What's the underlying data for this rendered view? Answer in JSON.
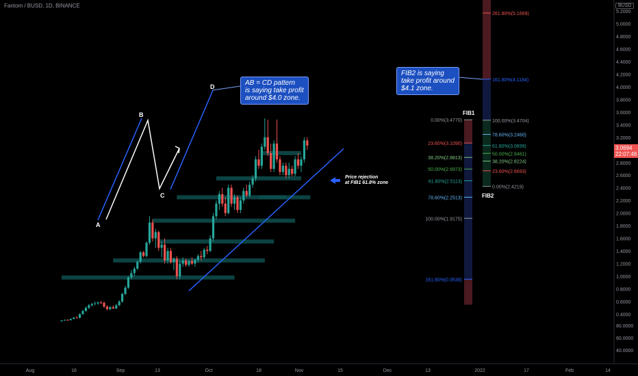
{
  "header": {
    "title": "Fantom / BUSD, 1D, BINANCE",
    "currency_badge": "BUSD"
  },
  "current_price": {
    "value": "3.0694",
    "countdown": "22:07:48",
    "color": "#ef5350"
  },
  "colors": {
    "up": "#26a69a",
    "down": "#ef5350",
    "trend": "#2962ff",
    "zone": "#0e4d4d",
    "note": "#1c4fc0"
  },
  "notes": {
    "abcd": "AB = CD pattern\nis saying take profit\naround $4.0 zone.",
    "fib2": "FIB2 is saying\ntake profit around\n$4.1 zone.",
    "rejection": "Price rejection\nat FIB1 61.8% zone"
  },
  "pattern_points": [
    "A",
    "B",
    "C",
    "D"
  ],
  "fib1": {
    "title": "FIB1",
    "levels": [
      {
        "label": "0.00%(3.4770)",
        "price": 3.477,
        "color": "#9598a1"
      },
      {
        "label": "23.60%(3.1090)",
        "price": 3.109,
        "color": "#ef5350"
      },
      {
        "label": "38.20%(2.8813)",
        "price": 2.8813,
        "color": "#81c784"
      },
      {
        "label": "50.00%(2.6973)",
        "price": 2.6973,
        "color": "#4caf50"
      },
      {
        "label": "61.80%(2.5113)",
        "price": 2.5113,
        "color": "#26a69a"
      },
      {
        "label": "78.60%(2.2513)",
        "price": 2.2513,
        "color": "#64b5f6"
      },
      {
        "label": "100.00%(1.9175)",
        "price": 1.9175,
        "color": "#9598a1"
      },
      {
        "label": "161.80%(0.9538)",
        "price": 0.9538,
        "color": "#2962ff"
      }
    ]
  },
  "fib2": {
    "title": "FIB2",
    "levels": [
      {
        "label": "261.80%(5.1669)",
        "price": 5.1669,
        "color": "#ef5350"
      },
      {
        "label": "161.80%(4.1184)",
        "price": 4.1184,
        "color": "#2962ff"
      },
      {
        "label": "100.00%(3.4704)",
        "price": 3.4704,
        "color": "#9598a1"
      },
      {
        "label": "78.60%(3.2460)",
        "price": 3.246,
        "color": "#64b5f6"
      },
      {
        "label": "61.80%(3.0699)",
        "price": 3.0699,
        "color": "#26a69a"
      },
      {
        "label": "50.00%(2.9461)",
        "price": 2.9461,
        "color": "#4caf50"
      },
      {
        "label": "38.20%(2.8224)",
        "price": 2.8224,
        "color": "#81c784"
      },
      {
        "label": "23.60%(2.6693)",
        "price": 2.6693,
        "color": "#ef5350"
      },
      {
        "label": "0.00%(2.4219)",
        "price": 2.4219,
        "color": "#9598a1"
      }
    ]
  },
  "chart_data": {
    "type": "candlestick",
    "title": "Fantom / BUSD, 1D, BINANCE",
    "x_ticks": [
      "Aug",
      "16",
      "Sep",
      "13",
      "Oct",
      "18",
      "Nov",
      "15",
      "Dec",
      "13",
      "2022",
      "17",
      "Feb",
      "14"
    ],
    "y_ticks": [
      "5.2000",
      "5.0000",
      "4.8000",
      "4.6000",
      "4.4000",
      "4.2000",
      "4.0000",
      "3.8000",
      "3.6000",
      "3.4000",
      "3.2000",
      "3.0000",
      "2.8000",
      "2.6000",
      "2.4000",
      "2.2000",
      "2.0000",
      "1.8000",
      "1.6000",
      "1.4000",
      "1.2000",
      "1.0000",
      "0.8000",
      "0.6000",
      "0.4000",
      "80.0000",
      "60.0000",
      "40.0000"
    ],
    "ylim": [
      0.2,
      5.4
    ],
    "candles": [
      {
        "o": 0.29,
        "h": 0.305,
        "l": 0.28,
        "c": 0.3
      },
      {
        "o": 0.3,
        "h": 0.315,
        "l": 0.295,
        "c": 0.31
      },
      {
        "o": 0.31,
        "h": 0.32,
        "l": 0.3,
        "c": 0.305
      },
      {
        "o": 0.305,
        "h": 0.33,
        "l": 0.3,
        "c": 0.325
      },
      {
        "o": 0.325,
        "h": 0.35,
        "l": 0.32,
        "c": 0.345
      },
      {
        "o": 0.345,
        "h": 0.37,
        "l": 0.34,
        "c": 0.34
      },
      {
        "o": 0.34,
        "h": 0.41,
        "l": 0.335,
        "c": 0.4
      },
      {
        "o": 0.4,
        "h": 0.47,
        "l": 0.39,
        "c": 0.45
      },
      {
        "o": 0.45,
        "h": 0.52,
        "l": 0.44,
        "c": 0.5
      },
      {
        "o": 0.5,
        "h": 0.56,
        "l": 0.48,
        "c": 0.54
      },
      {
        "o": 0.54,
        "h": 0.58,
        "l": 0.52,
        "c": 0.56
      },
      {
        "o": 0.56,
        "h": 0.6,
        "l": 0.54,
        "c": 0.57
      },
      {
        "o": 0.57,
        "h": 0.6,
        "l": 0.55,
        "c": 0.585
      },
      {
        "o": 0.585,
        "h": 0.61,
        "l": 0.56,
        "c": 0.58
      },
      {
        "o": 0.58,
        "h": 0.6,
        "l": 0.5,
        "c": 0.52
      },
      {
        "o": 0.52,
        "h": 0.54,
        "l": 0.46,
        "c": 0.48
      },
      {
        "o": 0.48,
        "h": 0.53,
        "l": 0.46,
        "c": 0.51
      },
      {
        "o": 0.51,
        "h": 0.54,
        "l": 0.48,
        "c": 0.49
      },
      {
        "o": 0.49,
        "h": 0.56,
        "l": 0.48,
        "c": 0.54
      },
      {
        "o": 0.54,
        "h": 0.62,
        "l": 0.53,
        "c": 0.6
      },
      {
        "o": 0.6,
        "h": 0.74,
        "l": 0.58,
        "c": 0.72
      },
      {
        "o": 0.72,
        "h": 0.85,
        "l": 0.7,
        "c": 0.82
      },
      {
        "o": 0.82,
        "h": 1.0,
        "l": 0.8,
        "c": 0.98
      },
      {
        "o": 0.98,
        "h": 1.1,
        "l": 0.95,
        "c": 1.05
      },
      {
        "o": 1.05,
        "h": 1.15,
        "l": 1.0,
        "c": 1.12
      },
      {
        "o": 1.12,
        "h": 1.25,
        "l": 1.1,
        "c": 1.23
      },
      {
        "o": 1.23,
        "h": 1.4,
        "l": 1.2,
        "c": 1.38
      },
      {
        "o": 1.38,
        "h": 1.4,
        "l": 1.3,
        "c": 1.32
      },
      {
        "o": 1.32,
        "h": 1.55,
        "l": 1.3,
        "c": 1.53
      },
      {
        "o": 1.53,
        "h": 1.95,
        "l": 1.5,
        "c": 1.85
      },
      {
        "o": 1.85,
        "h": 1.9,
        "l": 1.55,
        "c": 1.6
      },
      {
        "o": 1.6,
        "h": 1.75,
        "l": 1.45,
        "c": 1.7
      },
      {
        "o": 1.7,
        "h": 1.72,
        "l": 1.4,
        "c": 1.45
      },
      {
        "o": 1.45,
        "h": 1.55,
        "l": 1.3,
        "c": 1.5
      },
      {
        "o": 1.5,
        "h": 1.6,
        "l": 1.2,
        "c": 1.25
      },
      {
        "o": 1.25,
        "h": 1.45,
        "l": 1.2,
        "c": 1.4
      },
      {
        "o": 1.4,
        "h": 1.45,
        "l": 1.2,
        "c": 1.22
      },
      {
        "o": 1.22,
        "h": 1.3,
        "l": 1.1,
        "c": 1.28
      },
      {
        "o": 1.28,
        "h": 1.32,
        "l": 0.95,
        "c": 1.0
      },
      {
        "o": 1.0,
        "h": 1.25,
        "l": 0.95,
        "c": 1.2
      },
      {
        "o": 1.2,
        "h": 1.3,
        "l": 1.15,
        "c": 1.25
      },
      {
        "o": 1.25,
        "h": 1.28,
        "l": 1.15,
        "c": 1.18
      },
      {
        "o": 1.18,
        "h": 1.26,
        "l": 1.15,
        "c": 1.24
      },
      {
        "o": 1.24,
        "h": 1.3,
        "l": 1.18,
        "c": 1.2
      },
      {
        "o": 1.2,
        "h": 1.28,
        "l": 1.15,
        "c": 1.26
      },
      {
        "o": 1.26,
        "h": 1.35,
        "l": 1.22,
        "c": 1.32
      },
      {
        "o": 1.32,
        "h": 1.4,
        "l": 1.25,
        "c": 1.3
      },
      {
        "o": 1.3,
        "h": 1.45,
        "l": 1.28,
        "c": 1.42
      },
      {
        "o": 1.42,
        "h": 1.48,
        "l": 1.35,
        "c": 1.4
      },
      {
        "o": 1.4,
        "h": 1.65,
        "l": 1.38,
        "c": 1.6
      },
      {
        "o": 1.6,
        "h": 2.0,
        "l": 1.55,
        "c": 1.95
      },
      {
        "o": 1.95,
        "h": 2.2,
        "l": 1.9,
        "c": 2.15
      },
      {
        "o": 2.15,
        "h": 2.35,
        "l": 2.05,
        "c": 2.3
      },
      {
        "o": 2.3,
        "h": 2.4,
        "l": 2.1,
        "c": 2.15
      },
      {
        "o": 2.15,
        "h": 2.25,
        "l": 1.95,
        "c": 2.0
      },
      {
        "o": 2.0,
        "h": 2.45,
        "l": 1.98,
        "c": 2.4
      },
      {
        "o": 2.4,
        "h": 2.45,
        "l": 2.1,
        "c": 2.15
      },
      {
        "o": 2.15,
        "h": 2.3,
        "l": 2.05,
        "c": 2.25
      },
      {
        "o": 2.25,
        "h": 2.28,
        "l": 2.0,
        "c": 2.05
      },
      {
        "o": 2.05,
        "h": 2.25,
        "l": 2.0,
        "c": 2.2
      },
      {
        "o": 2.2,
        "h": 2.4,
        "l": 2.15,
        "c": 2.35
      },
      {
        "o": 2.35,
        "h": 2.45,
        "l": 2.25,
        "c": 2.28
      },
      {
        "o": 2.28,
        "h": 2.5,
        "l": 2.25,
        "c": 2.45
      },
      {
        "o": 2.45,
        "h": 2.6,
        "l": 2.4,
        "c": 2.55
      },
      {
        "o": 2.55,
        "h": 2.9,
        "l": 2.5,
        "c": 2.85
      },
      {
        "o": 2.85,
        "h": 3.0,
        "l": 2.7,
        "c": 2.75
      },
      {
        "o": 2.75,
        "h": 3.1,
        "l": 2.7,
        "c": 3.05
      },
      {
        "o": 3.05,
        "h": 3.5,
        "l": 3.0,
        "c": 3.2
      },
      {
        "o": 3.2,
        "h": 3.48,
        "l": 2.9,
        "c": 2.95
      },
      {
        "o": 2.95,
        "h": 3.1,
        "l": 2.65,
        "c": 2.7
      },
      {
        "o": 2.7,
        "h": 3.15,
        "l": 2.65,
        "c": 3.1
      },
      {
        "o": 3.1,
        "h": 3.48,
        "l": 2.8,
        "c": 2.85
      },
      {
        "o": 2.85,
        "h": 2.9,
        "l": 2.6,
        "c": 2.65
      },
      {
        "o": 2.65,
        "h": 2.8,
        "l": 2.6,
        "c": 2.75
      },
      {
        "o": 2.75,
        "h": 2.8,
        "l": 2.55,
        "c": 2.6
      },
      {
        "o": 2.6,
        "h": 2.8,
        "l": 2.55,
        "c": 2.7
      },
      {
        "o": 2.7,
        "h": 2.75,
        "l": 2.58,
        "c": 2.62
      },
      {
        "o": 2.62,
        "h": 2.9,
        "l": 2.58,
        "c": 2.85
      },
      {
        "o": 2.85,
        "h": 2.95,
        "l": 2.7,
        "c": 2.75
      },
      {
        "o": 2.75,
        "h": 2.9,
        "l": 2.65,
        "c": 2.85
      },
      {
        "o": 2.85,
        "h": 3.2,
        "l": 2.8,
        "c": 3.15
      },
      {
        "o": 3.15,
        "h": 3.2,
        "l": 3.0,
        "c": 3.069
      }
    ],
    "zones": [
      {
        "x0": 0,
        "x1": 57,
        "y": 0.98
      },
      {
        "x0": 17,
        "x1": 67,
        "y": 1.25
      },
      {
        "x0": 38,
        "x1": 82,
        "y": 2.25
      },
      {
        "x0": 65,
        "x1": 74,
        "y": 2.25
      },
      {
        "x0": 32,
        "x1": 70,
        "y": 1.55
      },
      {
        "x0": 30,
        "x1": 77,
        "y": 1.88
      },
      {
        "x0": 51,
        "x1": 79,
        "y": 2.55
      },
      {
        "x0": 66,
        "x1": 79,
        "y": 2.95
      }
    ],
    "trendline": [
      {
        "i": 42,
        "p": 0.77
      },
      {
        "i": 93,
        "p": 3.02
      }
    ]
  }
}
